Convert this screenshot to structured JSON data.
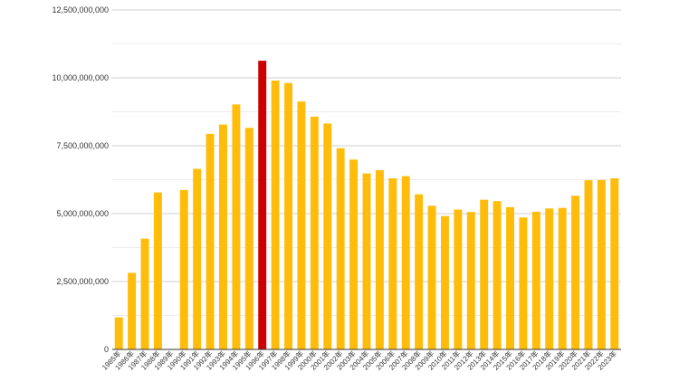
{
  "chart_data": {
    "type": "bar",
    "title": "",
    "xlabel": "",
    "ylabel": "",
    "ylim": [
      0,
      12500000000
    ],
    "yticks": [
      0,
      2500000000,
      5000000000,
      7500000000,
      10000000000,
      12500000000
    ],
    "ytick_labels": [
      "0",
      "2,500,000,000",
      "5,000,000,000",
      "7,500,000,000",
      "10,000,000,000",
      "12,500,000,000"
    ],
    "grid": true,
    "legend": "none",
    "categories": [
      "1985年",
      "1986年",
      "1987年",
      "1988年",
      "1989年",
      "1990年",
      "1991年",
      "1992年",
      "1993年",
      "1994年",
      "1995年",
      "1996年",
      "1997年",
      "1998年",
      "1999年",
      "2000年",
      "2001年",
      "2002年",
      "2003年",
      "2004年",
      "2005年",
      "2006年",
      "2007年",
      "2008年",
      "2009年",
      "2010年",
      "2011年",
      "2012年",
      "2013年",
      "2014年",
      "2015年",
      "2016年",
      "2017年",
      "2018年",
      "2019年",
      "2020年",
      "2021年",
      "2022年",
      "2023年"
    ],
    "values": [
      1180000000,
      2820000000,
      4080000000,
      5780000000,
      0,
      5870000000,
      6650000000,
      7940000000,
      8280000000,
      9020000000,
      8160000000,
      10630000000,
      9900000000,
      9810000000,
      9130000000,
      8570000000,
      8320000000,
      7410000000,
      6990000000,
      6480000000,
      6600000000,
      6300000000,
      6380000000,
      5710000000,
      5290000000,
      4910000000,
      5150000000,
      5060000000,
      5510000000,
      5460000000,
      5240000000,
      4860000000,
      5070000000,
      5190000000,
      5210000000,
      5660000000,
      6230000000,
      6240000000,
      6300000000
    ],
    "colors": {
      "default": "#FFBC0A",
      "highlight": "#CC0000",
      "highlight_category": "1996年"
    }
  }
}
